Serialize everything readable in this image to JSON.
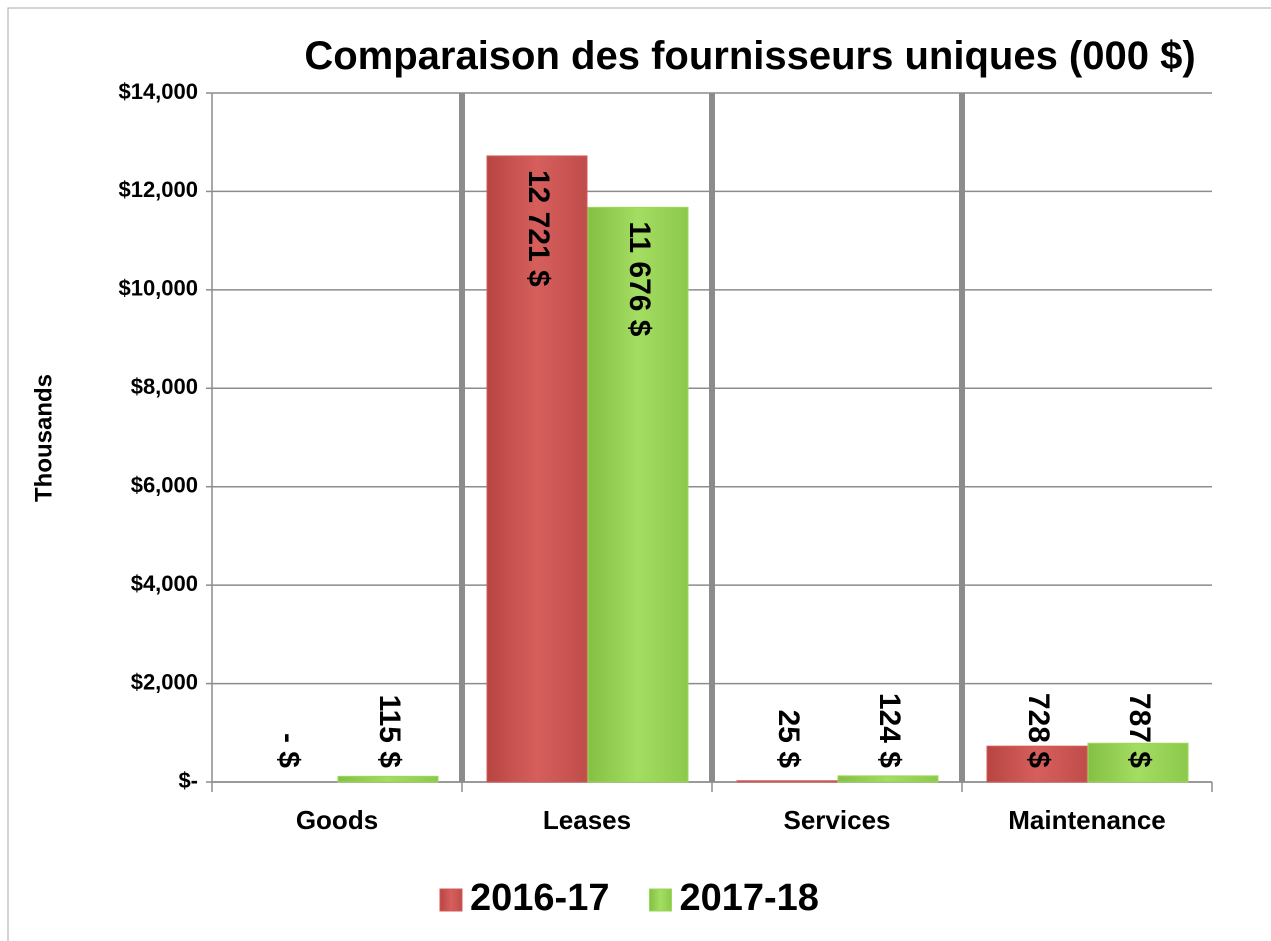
{
  "chart_data": {
    "type": "bar",
    "title": "Comparaison des fournisseurs uniques (000 $)",
    "ylabel": "Thousands",
    "categories": [
      "Goods",
      "Leases",
      "Services",
      "Maintenance"
    ],
    "series": [
      {
        "name": "2016-17",
        "color": "#d05a57",
        "values": [
          0,
          12721,
          25,
          728
        ],
        "value_labels": [
          "- $",
          "12 721 $",
          "25 $",
          "728 $"
        ]
      },
      {
        "name": "2017-18",
        "color": "#9bd75a",
        "values": [
          115,
          11676,
          124,
          787
        ],
        "value_labels": [
          "115 $",
          "11 676 $",
          "124 $",
          "787 $"
        ]
      }
    ],
    "ylim": [
      0,
      14000
    ],
    "yticks": [
      {
        "value": 0,
        "label": "$-"
      },
      {
        "value": 2000,
        "label": "$2,000"
      },
      {
        "value": 4000,
        "label": "$4,000"
      },
      {
        "value": 6000,
        "label": "$6,000"
      },
      {
        "value": 8000,
        "label": "$8,000"
      },
      {
        "value": 10000,
        "label": "$10,000"
      },
      {
        "value": 12000,
        "label": "$12,000"
      },
      {
        "value": 14000,
        "label": "$14,000"
      }
    ],
    "grid": true,
    "legend": "bottom"
  }
}
